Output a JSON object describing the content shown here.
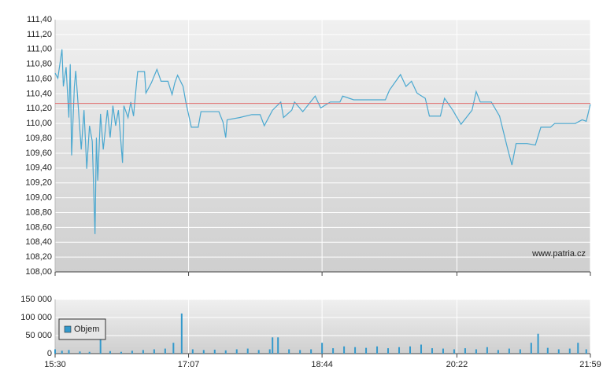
{
  "chart_data": [
    {
      "type": "line",
      "source": "www.patria.cz",
      "color": "#4aa8d0",
      "reference_line": 110.27,
      "reference_color": "#e07070",
      "x": [
        "15:30",
        "15:32",
        "15:35",
        "15:36",
        "15:38",
        "15:40",
        "15:41",
        "15:42",
        "15:44",
        "15:45",
        "15:47",
        "15:49",
        "15:51",
        "15:53",
        "15:55",
        "15:57",
        "15:59",
        "16:00",
        "16:01",
        "16:03",
        "16:05",
        "16:08",
        "16:10",
        "16:12",
        "16:14",
        "16:16",
        "16:19",
        "16:20",
        "16:23",
        "16:25",
        "16:27",
        "16:28",
        "16:30",
        "16:35",
        "16:36",
        "16:40",
        "16:44",
        "16:47",
        "16:52",
        "16:55",
        "16:57",
        "16:59",
        "17:03",
        "17:05",
        "17:09",
        "17:14",
        "17:16",
        "17:29",
        "17:32",
        "17:34",
        "17:35",
        "17:44",
        "17:53",
        "17:59",
        "18:02",
        "18:08",
        "18:14",
        "18:16",
        "18:22",
        "18:24",
        "18:30",
        "18:39",
        "18:43",
        "18:50",
        "18:57",
        "18:59",
        "19:07",
        "19:30",
        "19:33",
        "19:41",
        "19:45",
        "19:49",
        "19:53",
        "19:59",
        "20:02",
        "20:10",
        "20:13",
        "20:19",
        "20:25",
        "20:33",
        "20:36",
        "20:39",
        "20:47",
        "20:53",
        "20:59",
        "21:02",
        "21:05",
        "21:13",
        "21:19",
        "21:23",
        "21:30",
        "21:33",
        "21:48",
        "21:53",
        "21:56",
        "21:59"
      ],
      "values": [
        110.68,
        110.61,
        111.0,
        110.5,
        110.76,
        110.08,
        110.8,
        109.57,
        110.5,
        110.71,
        110.18,
        109.65,
        110.18,
        109.39,
        109.97,
        109.76,
        108.51,
        109.81,
        109.23,
        110.13,
        109.65,
        110.18,
        109.81,
        110.24,
        109.97,
        110.18,
        109.47,
        110.24,
        110.08,
        110.29,
        110.1,
        110.31,
        110.7,
        110.7,
        110.41,
        110.55,
        110.73,
        110.57,
        110.57,
        110.39,
        110.55,
        110.65,
        110.5,
        110.29,
        109.95,
        109.95,
        110.16,
        110.16,
        110.02,
        109.81,
        110.05,
        110.08,
        110.12,
        110.12,
        109.97,
        110.18,
        110.29,
        110.08,
        110.18,
        110.29,
        110.16,
        110.37,
        110.21,
        110.29,
        110.29,
        110.37,
        110.32,
        110.32,
        110.45,
        110.66,
        110.5,
        110.57,
        110.41,
        110.34,
        110.1,
        110.1,
        110.34,
        110.18,
        109.99,
        110.18,
        110.43,
        110.29,
        110.29,
        110.1,
        109.65,
        109.44,
        109.73,
        109.73,
        109.71,
        109.95,
        109.95,
        110.0,
        110.0,
        110.05,
        110.03,
        110.26
      ],
      "ylim": [
        108.0,
        111.4
      ],
      "yticks": [
        {
          "value": 108.0,
          "label": "108,00"
        },
        {
          "value": 108.2,
          "label": "108,20"
        },
        {
          "value": 108.4,
          "label": "108,40"
        },
        {
          "value": 108.6,
          "label": "108,60"
        },
        {
          "value": 108.8,
          "label": "108,80"
        },
        {
          "value": 109.0,
          "label": "109,00"
        },
        {
          "value": 109.2,
          "label": "109,20"
        },
        {
          "value": 109.4,
          "label": "109,40"
        },
        {
          "value": 109.6,
          "label": "109,60"
        },
        {
          "value": 109.8,
          "label": "109,80"
        },
        {
          "value": 110.0,
          "label": "110,00"
        },
        {
          "value": 110.2,
          "label": "110,20"
        },
        {
          "value": 110.4,
          "label": "110,40"
        },
        {
          "value": 110.6,
          "label": "110,60"
        },
        {
          "value": 110.8,
          "label": "110,80"
        },
        {
          "value": 111.0,
          "label": "111,00"
        },
        {
          "value": 111.2,
          "label": "111,20"
        },
        {
          "value": 111.4,
          "label": "111,40"
        }
      ],
      "grid": true
    },
    {
      "type": "bar",
      "x": [
        "15:30",
        "15:35",
        "15:40",
        "15:48",
        "15:55",
        "16:03",
        "16:10",
        "16:18",
        "16:26",
        "16:34",
        "16:42",
        "16:50",
        "16:56",
        "17:02",
        "17:10",
        "17:18",
        "17:26",
        "17:34",
        "17:42",
        "17:50",
        "17:58",
        "18:06",
        "18:08",
        "18:12",
        "18:20",
        "18:28",
        "18:36",
        "18:44",
        "18:52",
        "19:00",
        "19:08",
        "19:16",
        "19:24",
        "19:32",
        "19:40",
        "19:48",
        "19:56",
        "20:04",
        "20:12",
        "20:20",
        "20:28",
        "20:36",
        "20:44",
        "20:52",
        "21:00",
        "21:08",
        "21:16",
        "21:21",
        "21:28",
        "21:36",
        "21:44",
        "21:50",
        "21:56"
      ],
      "series": [
        {
          "name": "Objem",
          "color": "#3399cc",
          "values": [
            12000,
            8000,
            10000,
            6000,
            5000,
            40000,
            7000,
            5000,
            8000,
            10000,
            12000,
            14000,
            30000,
            111000,
            12000,
            10000,
            11000,
            9000,
            12000,
            14000,
            10000,
            12000,
            45000,
            45000,
            12000,
            10000,
            12000,
            30000,
            15000,
            20000,
            18000,
            16000,
            20000,
            15000,
            18000,
            20000,
            25000,
            15000,
            14000,
            12000,
            15000,
            12000,
            18000,
            10000,
            14000,
            12000,
            30000,
            55000,
            16000,
            12000,
            14000,
            30000,
            12000
          ]
        }
      ],
      "ylim": [
        0,
        150000
      ],
      "yticks": [
        0,
        {
          "value": 50000,
          "label": "50 000"
        },
        {
          "value": 100000,
          "label": "100 000"
        },
        {
          "value": 150000,
          "label": "150 000"
        }
      ],
      "xlim": [
        "15:30",
        "21:59"
      ],
      "xticks": [
        "15:30",
        "17:07",
        "18:44",
        "20:22",
        "21:59"
      ],
      "grid": true
    }
  ]
}
